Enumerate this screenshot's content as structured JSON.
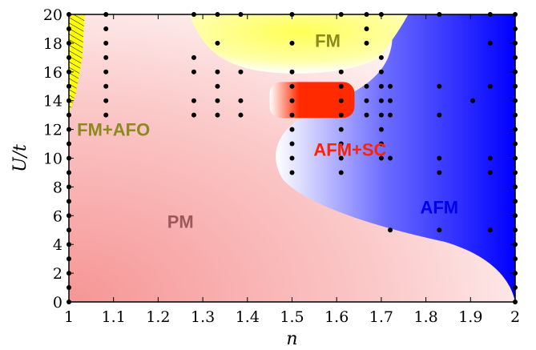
{
  "chart_data": {
    "type": "scatter",
    "title": "",
    "xlabel": "n",
    "ylabel": "U/t",
    "xlim": [
      1,
      2
    ],
    "ylim": [
      0,
      20
    ],
    "xticks": [
      "1",
      "1.1",
      "1.2",
      "1.3",
      "1.4",
      "1.5",
      "1.6",
      "1.7",
      "1.8",
      "1.9",
      "2"
    ],
    "yticks": [
      "0",
      "2",
      "4",
      "6",
      "8",
      "10",
      "12",
      "14",
      "16",
      "18",
      "20"
    ],
    "grid": false,
    "region_labels": [
      {
        "id": "fm",
        "text": "FM",
        "color": "#8a8a1e",
        "at": [
          1.58,
          18.2
        ]
      },
      {
        "id": "fm-afo",
        "text": "FM+AFO",
        "color": "#8a8a1e",
        "at": [
          1.1,
          12.0
        ]
      },
      {
        "id": "afm-sc",
        "text": "AFM+SC",
        "color": "#ff2200",
        "at": [
          1.63,
          10.6
        ]
      },
      {
        "id": "pm",
        "text": "PM",
        "color": "#9a5a5a",
        "at": [
          1.25,
          5.6
        ]
      },
      {
        "id": "afm",
        "text": "AFM",
        "color": "#0000ee",
        "at": [
          1.83,
          6.6
        ]
      }
    ],
    "colors": {
      "pm": "#f59a9a",
      "fm": "#ffff33",
      "afm": "#0000ff",
      "afm_sc": "#ff2a00",
      "fm_afo": "#ffff00"
    },
    "points": [
      [
        1,
        0
      ],
      [
        1,
        1
      ],
      [
        1,
        2
      ],
      [
        1,
        3
      ],
      [
        1,
        4
      ],
      [
        1,
        5
      ],
      [
        1,
        6
      ],
      [
        1,
        7
      ],
      [
        1,
        8
      ],
      [
        1,
        9
      ],
      [
        1,
        10
      ],
      [
        1,
        11
      ],
      [
        1,
        12
      ],
      [
        1,
        13
      ],
      [
        1,
        14
      ],
      [
        1,
        15
      ],
      [
        1,
        16
      ],
      [
        1,
        17
      ],
      [
        1,
        18
      ],
      [
        1,
        19
      ],
      [
        1,
        20
      ],
      [
        1.083,
        13
      ],
      [
        1.083,
        14
      ],
      [
        1.083,
        15
      ],
      [
        1.083,
        16
      ],
      [
        1.083,
        17
      ],
      [
        1.083,
        18
      ],
      [
        1.083,
        19
      ],
      [
        1.083,
        20
      ],
      [
        1.28,
        13
      ],
      [
        1.28,
        14
      ],
      [
        1.28,
        16
      ],
      [
        1.28,
        17
      ],
      [
        1.28,
        20
      ],
      [
        1.333,
        13
      ],
      [
        1.333,
        14
      ],
      [
        1.333,
        15
      ],
      [
        1.333,
        16
      ],
      [
        1.333,
        18
      ],
      [
        1.333,
        20
      ],
      [
        1.385,
        13
      ],
      [
        1.385,
        14
      ],
      [
        1.385,
        16
      ],
      [
        1.385,
        20
      ],
      [
        1.5,
        9
      ],
      [
        1.5,
        10
      ],
      [
        1.5,
        11
      ],
      [
        1.5,
        12
      ],
      [
        1.5,
        13
      ],
      [
        1.5,
        14
      ],
      [
        1.5,
        15
      ],
      [
        1.5,
        16
      ],
      [
        1.5,
        18
      ],
      [
        1.5,
        20
      ],
      [
        1.61,
        9
      ],
      [
        1.61,
        10
      ],
      [
        1.61,
        11
      ],
      [
        1.61,
        12
      ],
      [
        1.61,
        13
      ],
      [
        1.61,
        14
      ],
      [
        1.61,
        15
      ],
      [
        1.61,
        16
      ],
      [
        1.61,
        20
      ],
      [
        1.667,
        13
      ],
      [
        1.667,
        14
      ],
      [
        1.667,
        15
      ],
      [
        1.667,
        18
      ],
      [
        1.667,
        19
      ],
      [
        1.667,
        20
      ],
      [
        1.7,
        10
      ],
      [
        1.7,
        11
      ],
      [
        1.7,
        12
      ],
      [
        1.7,
        13
      ],
      [
        1.7,
        14
      ],
      [
        1.7,
        15
      ],
      [
        1.7,
        16
      ],
      [
        1.7,
        17
      ],
      [
        1.7,
        20
      ],
      [
        1.72,
        5
      ],
      [
        1.72,
        10
      ],
      [
        1.72,
        13
      ],
      [
        1.72,
        14
      ],
      [
        1.72,
        15
      ],
      [
        1.83,
        5
      ],
      [
        1.83,
        9
      ],
      [
        1.83,
        10
      ],
      [
        1.83,
        13
      ],
      [
        1.83,
        15
      ],
      [
        1.83,
        20
      ],
      [
        1.905,
        14
      ],
      [
        1.944,
        5
      ],
      [
        1.944,
        9
      ],
      [
        1.944,
        10
      ],
      [
        1.944,
        15
      ],
      [
        1.944,
        18
      ],
      [
        1.944,
        20
      ],
      [
        2,
        0
      ],
      [
        2,
        1
      ],
      [
        2,
        2
      ],
      [
        2,
        3
      ],
      [
        2,
        4
      ],
      [
        2,
        5
      ],
      [
        2,
        6
      ],
      [
        2,
        7
      ],
      [
        2,
        8
      ],
      [
        2,
        9
      ],
      [
        2,
        10
      ],
      [
        2,
        11
      ],
      [
        2,
        12
      ],
      [
        2,
        13
      ],
      [
        2,
        14
      ],
      [
        2,
        15
      ],
      [
        2,
        16
      ],
      [
        2,
        17
      ],
      [
        2,
        18
      ],
      [
        2,
        19
      ],
      [
        2,
        20
      ]
    ]
  }
}
